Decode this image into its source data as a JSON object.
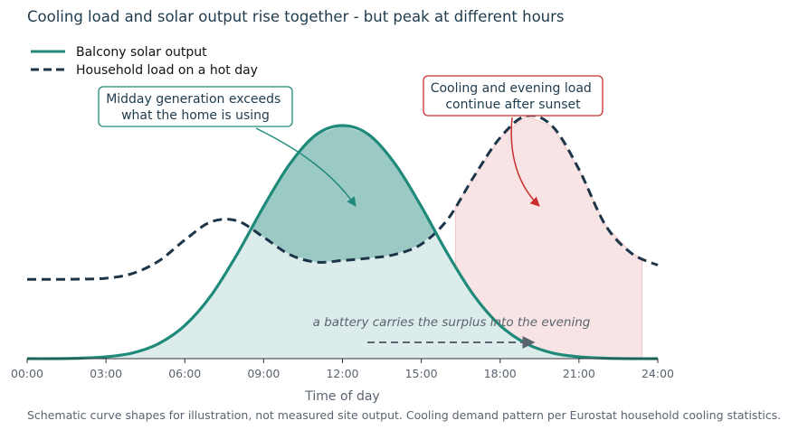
{
  "chart_data": {
    "type": "area",
    "title": "Cooling load and solar output rise together - but peak at different hours",
    "xlabel": "Time of day",
    "ylabel": "",
    "xlim": [
      0,
      24
    ],
    "ylim": [
      0,
      1.23
    ],
    "x_ticks": [
      0,
      3,
      6,
      9,
      12,
      15,
      18,
      21,
      24
    ],
    "x_tick_labels": [
      "00:00",
      "03:00",
      "06:00",
      "09:00",
      "12:00",
      "15:00",
      "18:00",
      "21:00",
      "24:00"
    ],
    "grid": false,
    "legend_position": "top-left",
    "x": [
      0,
      1,
      2,
      3,
      4,
      5,
      6,
      7,
      8,
      9,
      10,
      11,
      12,
      13,
      14,
      15,
      16,
      17,
      18,
      19,
      20,
      21,
      22,
      23,
      24
    ],
    "series": [
      {
        "name": "Balcony solar output",
        "color": "#1f8a7a",
        "style": "solid",
        "values": [
          0.0,
          0.0,
          0.002,
          0.008,
          0.024,
          0.064,
          0.142,
          0.271,
          0.45,
          0.653,
          0.836,
          0.961,
          1.0,
          0.961,
          0.836,
          0.653,
          0.45,
          0.271,
          0.142,
          0.064,
          0.024,
          0.008,
          0.002,
          0.0,
          0.0
        ]
      },
      {
        "name": "Household load on a hot day",
        "color": "#1c3549",
        "style": "dashed",
        "values": [
          0.34,
          0.34,
          0.341,
          0.345,
          0.365,
          0.418,
          0.509,
          0.587,
          0.591,
          0.521,
          0.446,
          0.414,
          0.421,
          0.431,
          0.447,
          0.491,
          0.597,
          0.781,
          0.948,
          1.042,
          0.996,
          0.812,
          0.574,
          0.452,
          0.401
        ]
      }
    ],
    "shaded_regions": [
      {
        "name": "solar surplus",
        "between": [
          "Balcony solar output",
          "Household load on a hot day"
        ],
        "color": "#1f8a7a"
      },
      {
        "name": "evening load",
        "x_range": [
          16.3,
          23.4
        ],
        "color": "#c9302c"
      }
    ],
    "annotations": [
      {
        "text": "Midday generation exceeds\nwhat the home is using",
        "target_x": 12.6,
        "target_y": 0.81,
        "color": "#1f8a7a"
      },
      {
        "text": "Cooling and evening load\ncontinue after sunset",
        "target_x": 19.5,
        "target_y": 0.81,
        "color": "#c9302c"
      },
      {
        "text": "a battery carries the surplus into the evening",
        "arrow_from_x": 13,
        "arrow_to_x": 19.3,
        "at_y": 0.085
      }
    ],
    "source_note": "Schematic curve shapes for illustration, not measured site output. Cooling demand pattern per Eurostat household cooling statistics."
  }
}
